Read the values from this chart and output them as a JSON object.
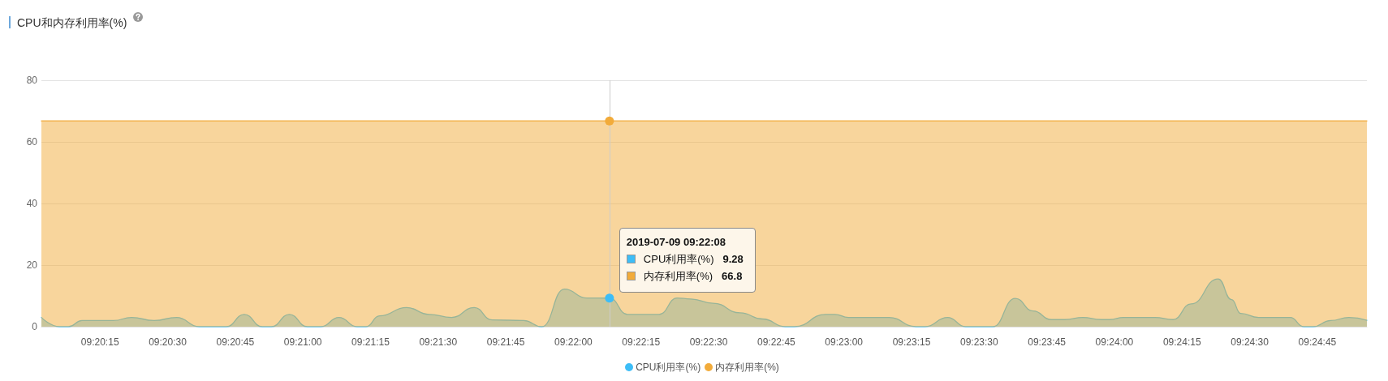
{
  "chart_data": {
    "type": "area",
    "title": "CPU和内存利用率(%)",
    "x": [
      9.333889,
      9.335,
      9.335556,
      9.336389,
      9.338333,
      9.339444,
      9.340833,
      9.342222,
      9.343611,
      9.345278,
      9.346389,
      9.3475,
      9.348056,
      9.349167,
      9.350278,
      9.351111,
      9.352222,
      9.353333,
      9.353889,
      9.354722,
      9.356389,
      9.357778,
      9.359167,
      9.360556,
      9.361667,
      9.363611,
      9.364722,
      9.366111,
      9.3675,
      9.368889,
      9.37,
      9.371944,
      9.373056,
      9.373889,
      9.375278,
      9.376944,
      9.378333,
      9.379722,
      9.380278,
      9.382222,
      9.382778,
      9.383611,
      9.386111,
      9.387778,
      9.388333,
      9.389722,
      9.390833,
      9.3925,
      9.393889,
      9.395,
      9.396111,
      9.396944,
      9.398056,
      9.399167,
      9.399722,
      9.400556,
      9.4025,
      9.403611,
      9.404722,
      9.406389,
      9.407222,
      9.407778,
      9.408889,
      9.410833,
      9.411667,
      9.412222,
      9.413333,
      9.414444,
      9.415556
    ],
    "series": [
      {
        "name": "CPU利用率(%)",
        "color": "#3dbdf7",
        "values": [
          3,
          0,
          0,
          2,
          2,
          3,
          2,
          3,
          0,
          0,
          4,
          0,
          0,
          4,
          0,
          0,
          3,
          0,
          0,
          3.5,
          6.2,
          4,
          3,
          6.2,
          2.2,
          2,
          0,
          12.2,
          9.3,
          9.28,
          4,
          4,
          9.3,
          9,
          7.6,
          4.5,
          2.5,
          0,
          0,
          4,
          4,
          3,
          3,
          0,
          0,
          3,
          0,
          0,
          9.2,
          5.1,
          2.3,
          2.3,
          3,
          2.3,
          2.3,
          3,
          3,
          2.3,
          7.4,
          15.5,
          8.8,
          4.3,
          3,
          3,
          0,
          0,
          2,
          3,
          2.1
        ]
      },
      {
        "name": "内存利用率(%)",
        "color": "#f2ab3a",
        "x": [
          9.333889,
          9.368889,
          9.415556
        ],
        "values": [
          66.8,
          66.8,
          66.8
        ]
      }
    ],
    "xlim": [
      9.333889,
      9.415556
    ],
    "xticks": [
      {
        "value": 9.3375,
        "label": "09:20:15"
      },
      {
        "value": 9.341667,
        "label": "09:20:30"
      },
      {
        "value": 9.345833,
        "label": "09:20:45"
      },
      {
        "value": 9.35,
        "label": "09:21:00"
      },
      {
        "value": 9.354167,
        "label": "09:21:15"
      },
      {
        "value": 9.358333,
        "label": "09:21:30"
      },
      {
        "value": 9.3625,
        "label": "09:21:45"
      },
      {
        "value": 9.366667,
        "label": "09:22:00"
      },
      {
        "value": 9.370833,
        "label": "09:22:15"
      },
      {
        "value": 9.375,
        "label": "09:22:30"
      },
      {
        "value": 9.379167,
        "label": "09:22:45"
      },
      {
        "value": 9.383333,
        "label": "09:23:00"
      },
      {
        "value": 9.3875,
        "label": "09:23:15"
      },
      {
        "value": 9.391667,
        "label": "09:23:30"
      },
      {
        "value": 9.395833,
        "label": "09:23:45"
      },
      {
        "value": 9.4,
        "label": "09:24:00"
      },
      {
        "value": 9.404167,
        "label": "09:24:15"
      },
      {
        "value": 9.408333,
        "label": "09:24:30"
      },
      {
        "value": 9.4125,
        "label": "09:24:45"
      }
    ],
    "ylim": [
      0,
      80
    ],
    "yticks": [
      0,
      20,
      40,
      60,
      80
    ],
    "ref_lines": [
      {
        "axis": "x",
        "value": 9.368889,
        "label": "2019-07-09 09:22:08",
        "color": "#cccccc"
      }
    ],
    "annotations": [
      "9.28",
      "66.8"
    ],
    "grid": "y",
    "legend": "bottom"
  }
}
